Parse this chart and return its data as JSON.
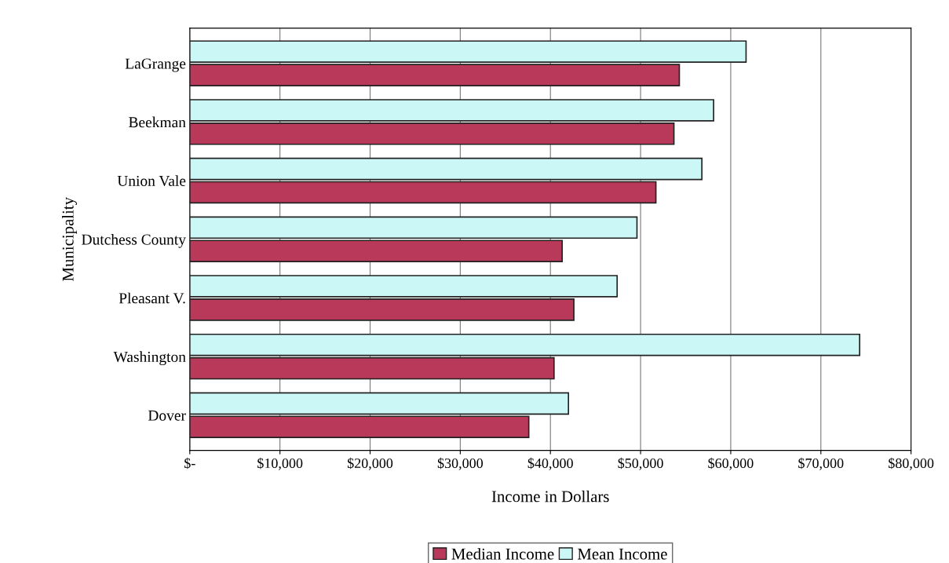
{
  "chart_data": {
    "type": "bar",
    "orientation": "horizontal",
    "xlabel": "Income in Dollars",
    "ylabel": "Municipality",
    "categories": [
      "LaGrange",
      "Beekman",
      "Union Vale",
      "Dutchess County",
      "Pleasant V.",
      "Washington",
      "Dover"
    ],
    "series": [
      {
        "name": "Median Income",
        "color": "#b8395a",
        "values": [
          54300,
          53700,
          51700,
          41300,
          42600,
          40400,
          37600
        ]
      },
      {
        "name": "Mean Income",
        "color": "#ccf7f7",
        "values": [
          61700,
          58100,
          56800,
          49600,
          47400,
          74300,
          42000
        ]
      }
    ],
    "xlim": [
      0,
      80000
    ],
    "xticks": [
      {
        "value": 0,
        "label": "$-"
      },
      {
        "value": 10000,
        "label": "$10,000"
      },
      {
        "value": 20000,
        "label": "$20,000"
      },
      {
        "value": 30000,
        "label": "$30,000"
      },
      {
        "value": 40000,
        "label": "$40,000"
      },
      {
        "value": 50000,
        "label": "$50,000"
      },
      {
        "value": 60000,
        "label": "$60,000"
      },
      {
        "value": 70000,
        "label": "$70,000"
      },
      {
        "value": 80000,
        "label": "$80,000"
      }
    ],
    "grid": "x",
    "legend": "bottom"
  }
}
